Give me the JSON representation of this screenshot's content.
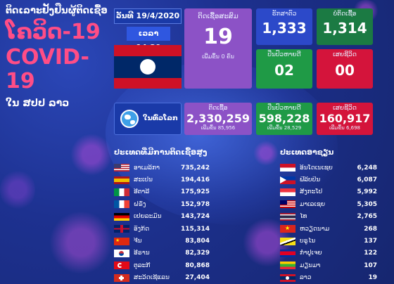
{
  "header": {
    "title_lao_top": "ຕິດເລາະຢັ້ງຢືນຜູ້ຕິດເຊື້ອ",
    "title_lao_covid": "ໂຄວິດ-19",
    "title_en": "COVID-19",
    "subtitle_lao": "ໃນ ສປປ ລາວ",
    "date": "ວັນທີ 19/4/2020",
    "time": "ເວລາ 14:30"
  },
  "laos": {
    "total": {
      "label": "ຕິດເຊື້ອສະສົມ",
      "value": "19",
      "sub": "ເພີ່ມຂຶ້ນ 0 ຄົນ"
    },
    "observing": {
      "label": "ຮັກສາຕົວ",
      "value": "1,333"
    },
    "negative": {
      "label": "ບໍ່ຕິດເຊື້ອ",
      "value": "1,314"
    },
    "recovered": {
      "label": "ປິ່ນປົວຫາຍດີ",
      "value": "02"
    },
    "deaths": {
      "label": "ເສຍຊີວິດ",
      "value": "00"
    }
  },
  "world": {
    "label": "ໃນທົ່ວໂລກ",
    "cases": {
      "label": "ຕິດເຊື້ອ",
      "value": "2,330,259",
      "sub": "ເພີ່ມຂຶ້ນ 85,956"
    },
    "recovered": {
      "label": "ປິ່ນປົວຫາຍດີ",
      "value": "598,228",
      "sub": "ເພີ່ມຂຶ້ນ 28,529"
    },
    "deaths": {
      "label": "ເສຍຊີວິດ",
      "value": "160,917",
      "sub": "ເພີ່ມຂຶ້ນ 6,698"
    }
  },
  "top_countries": {
    "title": "ປະເທດທີ່ມີການຕິດເຊື້ອສູງ",
    "rows": [
      {
        "name": "ອາເມລິກາ",
        "value": "735,242",
        "flag": "us"
      },
      {
        "name": "ສະເປນ",
        "value": "194,416",
        "flag": "es"
      },
      {
        "name": "ອີຕາລີ",
        "value": "175,925",
        "flag": "it"
      },
      {
        "name": "ຝຣັ່ງ",
        "value": "152,978",
        "flag": "fr"
      },
      {
        "name": "ເຢຍລະມັນ",
        "value": "143,724",
        "flag": "de"
      },
      {
        "name": "ອັງກິດ",
        "value": "115,314",
        "flag": "gb"
      },
      {
        "name": "ຈີນ",
        "value": "83,804",
        "flag": "cn"
      },
      {
        "name": "ອີຣານ",
        "value": "82,329",
        "flag": "kr"
      },
      {
        "name": "ຕຸລະກີ",
        "value": "80,868",
        "flag": "tr"
      },
      {
        "name": "ສະວິດເຊີແລນ",
        "value": "27,404",
        "flag": "ch"
      }
    ]
  },
  "asean": {
    "title": "ປະເທດອາຊຽນ",
    "rows": [
      {
        "name": "ອິນໂດເນເຊຍ",
        "value": "6,248",
        "flag": "id"
      },
      {
        "name": "ຟີລິບປິນ",
        "value": "6,087",
        "flag": "ph"
      },
      {
        "name": "ສິງກະໂປ",
        "value": "5,992",
        "flag": "sg"
      },
      {
        "name": "ມາເລເຊຍ",
        "value": "5,305",
        "flag": "my"
      },
      {
        "name": "ໄທ",
        "value": "2,765",
        "flag": "th"
      },
      {
        "name": "ຫວຽດນາມ",
        "value": "268",
        "flag": "vn"
      },
      {
        "name": "ບຣູໄນ",
        "value": "137",
        "flag": "bn"
      },
      {
        "name": "ກຳປູເຈຍ",
        "value": "122",
        "flag": "kh"
      },
      {
        "name": "ມຽນມາ",
        "value": "107",
        "flag": "mm"
      },
      {
        "name": "ລາວ",
        "value": "19",
        "flag": "la"
      }
    ]
  },
  "colors": {
    "accent_pink": "#ff4d86",
    "purple": "#8c52c6",
    "green": "#1f9a46",
    "red": "#d4143b",
    "blue": "#2c49c9"
  }
}
